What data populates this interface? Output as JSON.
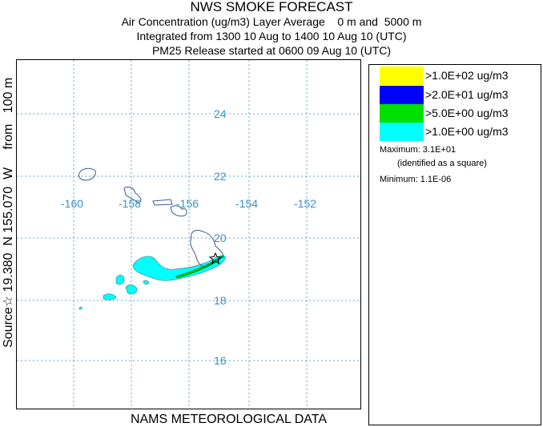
{
  "title": {
    "main": "NWS SMOKE FORECAST",
    "line2": "Air Concentration (ug/m3) Layer Average    0 m and  5000 m",
    "line3": "Integrated from 1300 10 Aug to 1400 10 Aug 10 (UTC)",
    "line4": "PM25 Release started at 0600 09 Aug 10 (UTC)"
  },
  "source_label": "Source☆ 19.380  N 155.070  W     from   100 m",
  "footer": "NAMS METEOROLOGICAL DATA",
  "map": {
    "lon_labels": [
      "-160",
      "-158",
      "-156",
      "-154",
      "-152"
    ],
    "lat_labels": [
      "24",
      "22",
      "20",
      "18",
      "16"
    ],
    "source_marker": "star",
    "grid_color": "#5aaad8",
    "coast_color": "#3a5a8c",
    "smoke_plume_color": "#00ffff",
    "smoke_core_color": "#00c000"
  },
  "legend": {
    "entries": [
      {
        "label": ">1.0E+02 ug/m3",
        "color": "#ffff00"
      },
      {
        "label": ">2.0E+01 ug/m3",
        "color": "#0000ff"
      },
      {
        "label": ">5.0E+00 ug/m3",
        "color": "#00e000"
      },
      {
        "label": ">1.0E+00 ug/m3",
        "color": "#00ffff"
      }
    ],
    "maximum_label": "Maximum: 3.1E+01",
    "maximum_note": "(identified as a square)",
    "minimum_label": "Minimum: 1.1E-06"
  }
}
